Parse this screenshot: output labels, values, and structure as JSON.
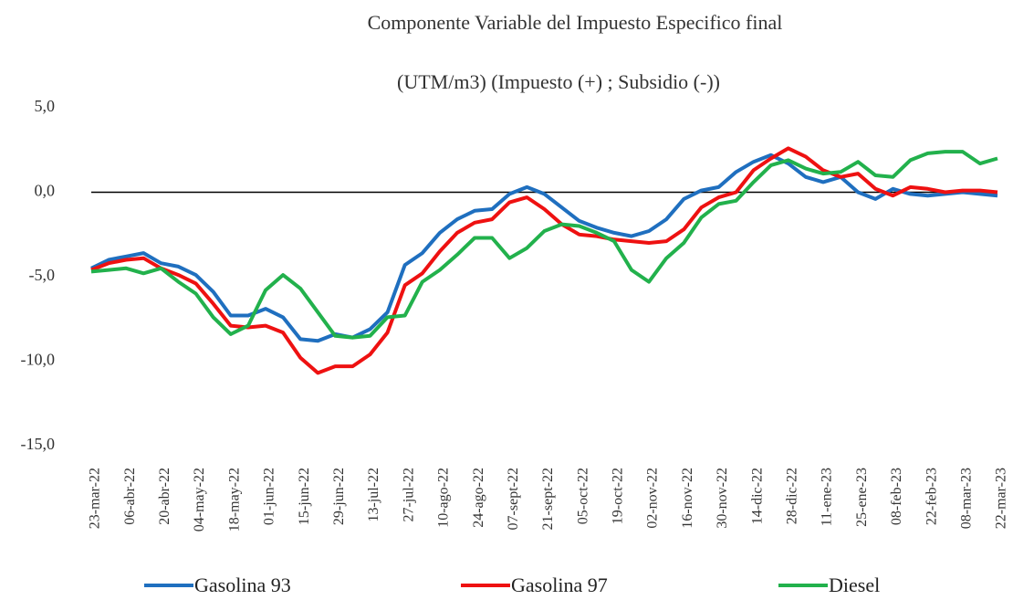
{
  "chart_data": {
    "type": "line",
    "title": "Componente Variable del Impuesto Especifico final",
    "subtitle": "(UTM/m3) (Impuesto (+) ; Subsidio (-))",
    "categories": [
      "23-mar-22",
      null,
      "06-abr-22",
      null,
      "20-abr-22",
      null,
      "04-may-22",
      null,
      "18-may-22",
      null,
      "01-jun-22",
      null,
      "15-jun-22",
      null,
      "29-jun-22",
      null,
      "13-jul-22",
      null,
      "27-jul-22",
      null,
      "10-ago-22",
      null,
      "24-ago-22",
      null,
      "07-sept-22",
      null,
      "21-sept-22",
      null,
      "05-oct-22",
      null,
      "19-oct-22",
      null,
      "02-nov-22",
      null,
      "16-nov-22",
      null,
      "30-nov-22",
      null,
      "14-dic-22",
      null,
      "28-dic-22",
      null,
      "11-ene-23",
      null,
      "25-ene-23",
      null,
      "08-feb-23",
      null,
      "22-feb-23",
      null,
      "08-mar-23",
      null,
      "22-mar-23"
    ],
    "series": [
      {
        "name": "Gasolina 93",
        "color": "#1f6fbf",
        "values": [
          -4.5,
          -4.0,
          -3.8,
          -3.6,
          -4.2,
          -4.4,
          -4.9,
          -5.9,
          -7.3,
          -7.3,
          -6.9,
          -7.4,
          -8.7,
          -8.8,
          -8.4,
          -8.6,
          -8.1,
          -7.1,
          -4.3,
          -3.6,
          -2.4,
          -1.6,
          -1.1,
          -1.0,
          -0.1,
          0.3,
          -0.1,
          -0.9,
          -1.7,
          -2.1,
          -2.4,
          -2.6,
          -2.3,
          -1.6,
          -0.4,
          0.1,
          0.3,
          1.2,
          1.8,
          2.2,
          1.7,
          0.9,
          0.6,
          0.9,
          0.0,
          -0.4,
          0.2,
          -0.1,
          -0.2,
          -0.1,
          0.0,
          -0.1,
          -0.2
        ]
      },
      {
        "name": "Gasolina 97",
        "color": "#ee1111",
        "values": [
          -4.6,
          -4.2,
          -4.0,
          -3.9,
          -4.5,
          -4.9,
          -5.4,
          -6.6,
          -7.9,
          -8.0,
          -7.9,
          -8.3,
          -9.8,
          -10.7,
          -10.3,
          -10.3,
          -9.6,
          -8.3,
          -5.5,
          -4.8,
          -3.5,
          -2.4,
          -1.8,
          -1.6,
          -0.6,
          -0.3,
          -1.0,
          -1.9,
          -2.5,
          -2.6,
          -2.8,
          -2.9,
          -3.0,
          -2.9,
          -2.2,
          -0.9,
          -0.3,
          0.0,
          1.3,
          2.0,
          2.6,
          2.1,
          1.3,
          0.9,
          1.1,
          0.2,
          -0.2,
          0.3,
          0.2,
          0.0,
          0.1,
          0.1,
          0.0
        ]
      },
      {
        "name": "Diesel",
        "color": "#22b14c",
        "values": [
          -4.7,
          -4.6,
          -4.5,
          -4.8,
          -4.5,
          -5.3,
          -6.0,
          -7.4,
          -8.4,
          -7.9,
          -5.8,
          -4.9,
          -5.7,
          -7.1,
          -8.5,
          -8.6,
          -8.5,
          -7.4,
          -7.3,
          -5.3,
          -4.6,
          -3.7,
          -2.7,
          -2.7,
          -3.9,
          -3.3,
          -2.3,
          -1.9,
          -2.0,
          -2.4,
          -2.9,
          -4.6,
          -5.3,
          -3.9,
          -3.0,
          -1.5,
          -0.7,
          -0.5,
          0.6,
          1.6,
          1.9,
          1.4,
          1.1,
          1.2,
          1.8,
          1.0,
          0.9,
          1.9,
          2.3,
          2.4,
          2.4,
          1.7,
          2.0
        ]
      }
    ],
    "ylim": [
      -15,
      5
    ],
    "yticks": [
      {
        "value": -15,
        "label": "-15,0"
      },
      {
        "value": -10,
        "label": "-10,0"
      },
      {
        "value": -5,
        "label": "-5,0"
      },
      {
        "value": 0,
        "label": "0,0"
      },
      {
        "value": 5,
        "label": "5,0"
      }
    ],
    "grid": false
  }
}
